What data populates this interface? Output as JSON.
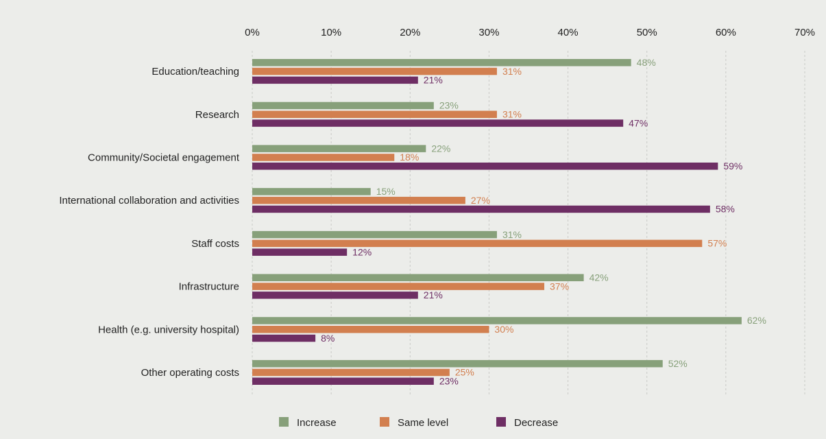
{
  "chart_data": {
    "type": "bar",
    "orientation": "horizontal",
    "categories": [
      "Education/teaching",
      "Research",
      "Community/Societal  engagement",
      "International collaboration and activities",
      "Staff costs",
      "Infrastructure",
      "Health (e.g. university hospital)",
      "Other operating costs"
    ],
    "series": [
      {
        "name": "Increase",
        "color": "#87a07a",
        "values": [
          48,
          23,
          22,
          15,
          31,
          42,
          62,
          52
        ]
      },
      {
        "name": "Same level",
        "color": "#d27f4f",
        "values": [
          31,
          31,
          18,
          27,
          57,
          37,
          30,
          25
        ]
      },
      {
        "name": "Decrease",
        "color": "#6e2e64",
        "values": [
          21,
          47,
          59,
          58,
          12,
          21,
          8,
          23
        ]
      }
    ],
    "value_suffix": "%",
    "xlim": [
      0,
      70
    ],
    "xticks": [
      "0%",
      "10%",
      "20%",
      "30%",
      "40%",
      "50%",
      "60%",
      "70%"
    ],
    "xaxis_position": "top",
    "grid": "vertical dashed",
    "legend_position": "bottom"
  }
}
